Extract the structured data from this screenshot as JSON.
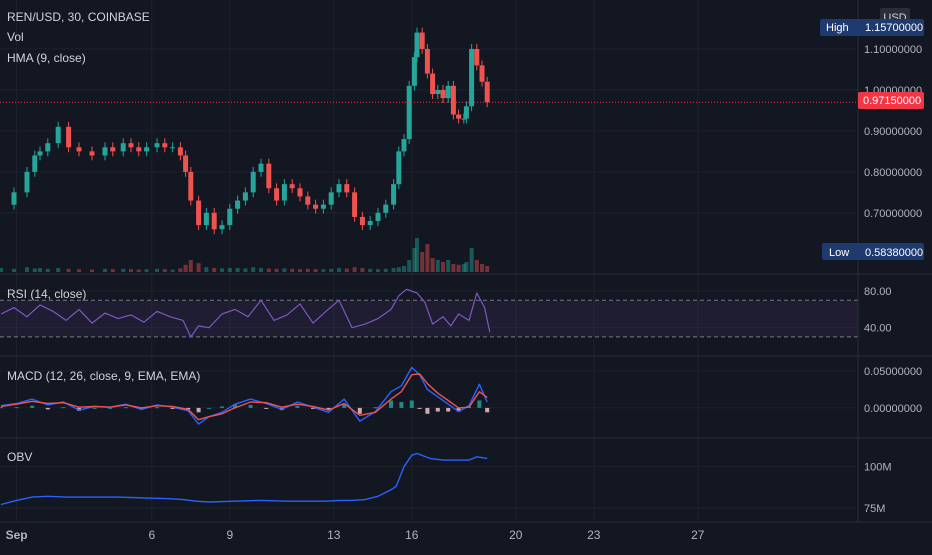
{
  "header": {
    "symbol_line": "REN/USD, 30, COINBASE",
    "vol_label": "Vol",
    "hma_label": "HMA (9, close)"
  },
  "currency_badge": "USD",
  "markers": {
    "high_label": "High",
    "high_value": "1.15700000",
    "low_label": "Low",
    "low_value": "0.58380000",
    "last_value": "0.97150000"
  },
  "colors": {
    "background": "#131722",
    "up": "#26a69a",
    "down": "#ef5350",
    "rsi_line": "#7e57c2",
    "macd_line": "#2962ff",
    "signal_line": "#ef5350",
    "obv_line": "#2962ff",
    "last_price_tag": "#f23645",
    "marker_tag": "#1e3a6e"
  },
  "chart_data": [
    {
      "type": "line",
      "id": "price",
      "ylim": [
        0.58,
        1.2
      ],
      "yticks": [
        "1.10000000",
        "1.00000000",
        "0.90000000",
        "0.80000000",
        "0.70000000"
      ],
      "yticks_values": [
        1.1,
        1.0,
        0.9,
        0.8,
        0.7
      ],
      "x_day": [
        0,
        0.5,
        1,
        1.3,
        1.5,
        1.8,
        2.2,
        2.6,
        3,
        3.5,
        4,
        4.3,
        4.7,
        5,
        5.3,
        5.6,
        6,
        6.3,
        6.6,
        6.9,
        7.1,
        7.3,
        7.6,
        7.9,
        8.2,
        8.5,
        8.8,
        9.1,
        9.4,
        9.7,
        10,
        10.3,
        10.6,
        10.9,
        11.2,
        11.5,
        11.8,
        12.1,
        12.4,
        12.7,
        13,
        13.3,
        13.6,
        13.9,
        14.2,
        14.5,
        14.8,
        15.1,
        15.3,
        15.5,
        15.7,
        15.9,
        16.0,
        16.2,
        16.4,
        16.6,
        16.8,
        17.0,
        17.2,
        17.4,
        17.6,
        17.8,
        17.9,
        18.1,
        18.3,
        18.5,
        18.7
      ],
      "close": [
        0.72,
        0.75,
        0.8,
        0.84,
        0.85,
        0.87,
        0.91,
        0.86,
        0.85,
        0.84,
        0.86,
        0.85,
        0.87,
        0.86,
        0.85,
        0.86,
        0.87,
        0.86,
        0.86,
        0.84,
        0.8,
        0.73,
        0.67,
        0.7,
        0.66,
        0.67,
        0.71,
        0.73,
        0.75,
        0.8,
        0.82,
        0.76,
        0.73,
        0.77,
        0.76,
        0.74,
        0.72,
        0.71,
        0.72,
        0.75,
        0.77,
        0.75,
        0.69,
        0.67,
        0.68,
        0.7,
        0.72,
        0.77,
        0.85,
        0.88,
        1.01,
        1.08,
        1.14,
        1.1,
        1.04,
        0.99,
        1.0,
        0.98,
        1.01,
        0.94,
        0.93,
        0.93,
        0.96,
        1.1,
        1.06,
        1.02,
        0.97
      ],
      "volume": [
        0.1,
        0.08,
        0.12,
        0.09,
        0.1,
        0.08,
        0.1,
        0.08,
        0.07,
        0.06,
        0.08,
        0.07,
        0.08,
        0.07,
        0.06,
        0.07,
        0.08,
        0.07,
        0.06,
        0.09,
        0.18,
        0.3,
        0.22,
        0.12,
        0.1,
        0.09,
        0.1,
        0.1,
        0.09,
        0.12,
        0.1,
        0.09,
        0.08,
        0.09,
        0.08,
        0.07,
        0.08,
        0.07,
        0.07,
        0.08,
        0.1,
        0.09,
        0.12,
        0.1,
        0.08,
        0.07,
        0.08,
        0.1,
        0.12,
        0.15,
        0.3,
        0.6,
        0.85,
        0.5,
        0.7,
        0.35,
        0.3,
        0.25,
        0.3,
        0.2,
        0.18,
        0.2,
        0.25,
        0.6,
        0.3,
        0.2,
        0.15
      ]
    },
    {
      "type": "line",
      "id": "rsi",
      "title": "RSI (14, close)",
      "ylim": [
        20,
        90
      ],
      "yticks": [
        "80.00",
        "40.00"
      ],
      "yticks_values": [
        80,
        40
      ],
      "band": [
        30,
        70
      ],
      "x_day": [
        0,
        0.5,
        1,
        1.5,
        2,
        2.5,
        3,
        3.5,
        4,
        4.5,
        5,
        5.5,
        6,
        6.5,
        7,
        7.3,
        7.6,
        8,
        8.5,
        9,
        9.5,
        10,
        10.5,
        11,
        11.5,
        12,
        12.5,
        13,
        13.5,
        14,
        14.5,
        15,
        15.3,
        15.6,
        16,
        16.3,
        16.6,
        17,
        17.3,
        17.6,
        18,
        18.3,
        18.6,
        18.8
      ],
      "values": [
        55,
        62,
        52,
        65,
        58,
        48,
        60,
        45,
        56,
        50,
        54,
        46,
        58,
        52,
        48,
        30,
        42,
        40,
        55,
        60,
        52,
        70,
        48,
        54,
        66,
        45,
        58,
        70,
        40,
        44,
        50,
        60,
        75,
        82,
        78,
        68,
        44,
        52,
        42,
        55,
        48,
        78,
        62,
        35
      ]
    },
    {
      "type": "line",
      "id": "macd",
      "title": "MACD (12, 26, close, 9, EMA, EMA)",
      "ylim": [
        -0.03,
        0.065
      ],
      "yticks": [
        "0.05000000",
        "0.00000000"
      ],
      "yticks_values": [
        0.05,
        0.0
      ],
      "x_day": [
        0,
        0.6,
        1.2,
        1.8,
        2.4,
        3,
        3.6,
        4.2,
        4.8,
        5.4,
        6,
        6.6,
        7.2,
        7.6,
        8,
        8.5,
        9,
        9.6,
        10.2,
        10.8,
        11.4,
        12,
        12.6,
        13.2,
        13.8,
        14.4,
        15,
        15.4,
        15.8,
        16.1,
        16.4,
        16.8,
        17.2,
        17.6,
        18,
        18.4,
        18.7
      ],
      "macd": [
        0.003,
        0.006,
        0.012,
        0.004,
        0.008,
        -0.003,
        0.002,
        0.001,
        0.005,
        -0.002,
        0.004,
        0.001,
        -0.004,
        -0.022,
        -0.012,
        -0.006,
        0.005,
        0.012,
        0.006,
        -0.002,
        0.008,
        0.001,
        -0.006,
        0.012,
        -0.018,
        -0.005,
        0.022,
        0.03,
        0.055,
        0.045,
        0.025,
        0.015,
        0.005,
        -0.005,
        0.003,
        0.032,
        0.008
      ],
      "signal": [
        0.002,
        0.005,
        0.009,
        0.006,
        0.007,
        0.001,
        0.002,
        0.001,
        0.004,
        0.0,
        0.003,
        0.002,
        -0.002,
        -0.016,
        -0.012,
        -0.008,
        0.0,
        0.008,
        0.007,
        0.001,
        0.005,
        0.002,
        -0.003,
        0.006,
        -0.01,
        -0.006,
        0.012,
        0.022,
        0.045,
        0.046,
        0.033,
        0.02,
        0.01,
        0.0,
        0.001,
        0.022,
        0.014
      ]
    },
    {
      "type": "line",
      "id": "obv",
      "title": "OBV",
      "ylim": [
        70,
        115
      ],
      "yticks": [
        "100M",
        "75M"
      ],
      "yticks_values": [
        100,
        75
      ],
      "x_day": [
        0,
        0.6,
        1.2,
        1.8,
        2.5,
        3.5,
        4.5,
        5.5,
        6.5,
        7.0,
        7.5,
        8,
        9,
        10,
        11,
        12,
        12.5,
        13,
        13.5,
        14,
        14.5,
        15,
        15.2,
        15.5,
        15.8,
        16,
        16.5,
        17,
        17.5,
        18,
        18.3,
        18.7
      ],
      "values": [
        77,
        79.5,
        81.5,
        82,
        81.5,
        81.5,
        81.5,
        81,
        80.5,
        80,
        79,
        78.5,
        79,
        79.5,
        79,
        79,
        79,
        79.5,
        79.5,
        80,
        82,
        86,
        88,
        100,
        107,
        108,
        105,
        104,
        104,
        104,
        106,
        105
      ]
    },
    {
      "type": "table",
      "id": "time_axis",
      "labels": [
        "Sep",
        "6",
        "9",
        "13",
        "16",
        "20",
        "23",
        "27"
      ],
      "x_day": [
        0.6,
        5.8,
        8.8,
        12.8,
        15.8,
        19.8,
        22.8,
        26.8
      ]
    }
  ]
}
